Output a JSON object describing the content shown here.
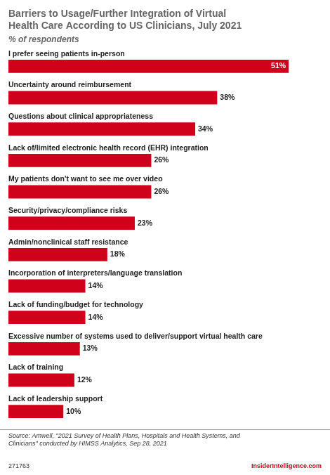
{
  "chart_data": {
    "type": "bar",
    "orientation": "horizontal",
    "title": "Barriers to Usage/Further Integration of Virtual\nHealth Care According to US Clinicians, July 2021",
    "subtitle": "% of respondents",
    "categories": [
      "I prefer seeing patients in-person",
      "Uncertainty around reimbursement",
      "Questions about clinical appropriateness",
      "Lack of/limited electronic health record (EHR) integration",
      "My patients don't want to see me over video",
      "Security/privacy/compliance risks",
      "Admin/nonclinical staff resistance",
      "Incorporation of interpreters/language translation",
      "Lack of funding/budget for technology",
      "Excessive number of systems used to deliver/support virtual health care",
      "Lack of training",
      "Lack of leadership support"
    ],
    "values": [
      51,
      38,
      34,
      26,
      26,
      23,
      18,
      14,
      14,
      13,
      12,
      10
    ],
    "value_labels": [
      "51%",
      "38%",
      "34%",
      "26%",
      "26%",
      "23%",
      "18%",
      "14%",
      "14%",
      "13%",
      "12%",
      "10%"
    ],
    "color": "#d0021b",
    "xlim": [
      0,
      57
    ],
    "grid": false,
    "tick_labels": false,
    "data_labels": true,
    "annotations": [
      "Source: Amwell, \"2021 Survey of Health Plans, Hospitals and Health Systems, and\nClinicians\" conducted by HIMSS Analytics, Sep 28, 2021",
      "271763",
      "InsiderIntelligence.com"
    ]
  }
}
